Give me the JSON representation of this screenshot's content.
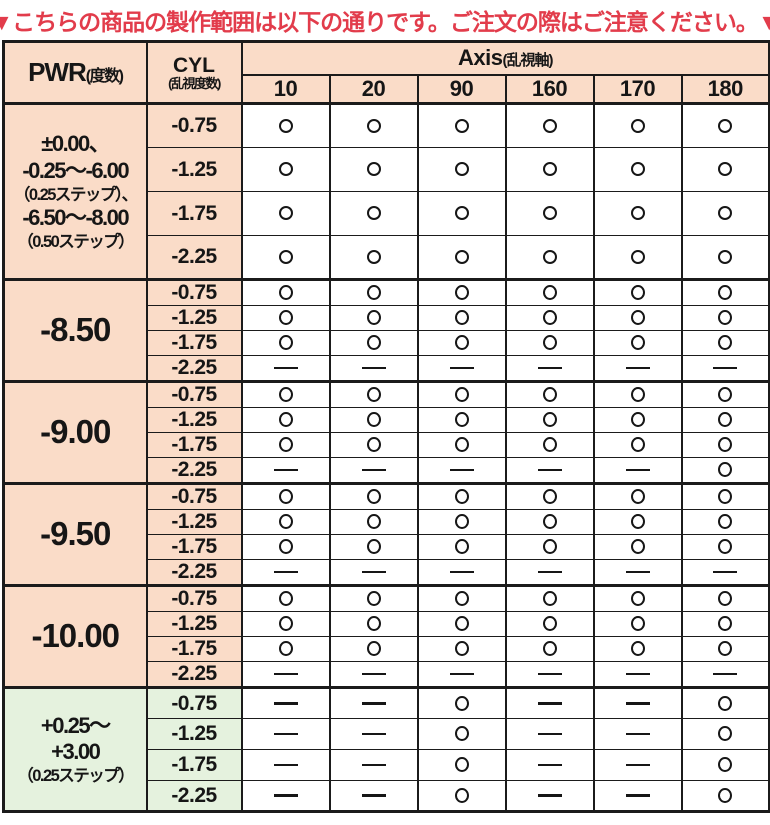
{
  "title": "▼こちらの商品の製作範囲は以下の通りです。ご注文の際はご注意ください。▼",
  "colors": {
    "title_red": "#e23c4b",
    "peach": "#fadcc8",
    "green": "#e5f2de",
    "border": "#1b1b1b"
  },
  "header": {
    "pwr_main": "PWR",
    "pwr_sub": "(度数)",
    "cyl_main": "CYL",
    "cyl_sub": "(乱視度数)",
    "axis_main": "Axis",
    "axis_sub": "(乱視軸)",
    "axis_values": [
      "10",
      "20",
      "90",
      "160",
      "170",
      "180"
    ]
  },
  "groups": [
    {
      "theme": "peach",
      "row_size": "tall",
      "pwr_lines": [
        {
          "text": "±0.00、",
          "small": false
        },
        {
          "text": "-0.25〜-6.00",
          "small": false
        },
        {
          "text": "（0.25ステップ）、",
          "small": true
        },
        {
          "text": "-6.50〜-8.00",
          "small": false
        },
        {
          "text": "（0.50ステップ）",
          "small": true
        }
      ],
      "rows": [
        {
          "cyl": "-0.75",
          "marks": [
            "○",
            "○",
            "○",
            "○",
            "○",
            "○"
          ]
        },
        {
          "cyl": "-1.25",
          "marks": [
            "○",
            "○",
            "○",
            "○",
            "○",
            "○"
          ]
        },
        {
          "cyl": "-1.75",
          "marks": [
            "○",
            "○",
            "○",
            "○",
            "○",
            "○"
          ]
        },
        {
          "cyl": "-2.25",
          "marks": [
            "○",
            "○",
            "○",
            "○",
            "○",
            "○"
          ]
        }
      ]
    },
    {
      "theme": "peach",
      "row_size": "compact",
      "pwr_lines": [
        {
          "text": "-8.50",
          "small": false
        }
      ],
      "rows": [
        {
          "cyl": "-0.75",
          "marks": [
            "○",
            "○",
            "○",
            "○",
            "○",
            "○"
          ]
        },
        {
          "cyl": "-1.25",
          "marks": [
            "○",
            "○",
            "○",
            "○",
            "○",
            "○"
          ]
        },
        {
          "cyl": "-1.75",
          "marks": [
            "○",
            "○",
            "○",
            "○",
            "○",
            "○"
          ]
        },
        {
          "cyl": "-2.25",
          "marks": [
            "—",
            "—",
            "—",
            "—",
            "—",
            "—"
          ]
        }
      ]
    },
    {
      "theme": "peach",
      "row_size": "compact",
      "pwr_lines": [
        {
          "text": "-9.00",
          "small": false
        }
      ],
      "rows": [
        {
          "cyl": "-0.75",
          "marks": [
            "○",
            "○",
            "○",
            "○",
            "○",
            "○"
          ]
        },
        {
          "cyl": "-1.25",
          "marks": [
            "○",
            "○",
            "○",
            "○",
            "○",
            "○"
          ]
        },
        {
          "cyl": "-1.75",
          "marks": [
            "○",
            "○",
            "○",
            "○",
            "○",
            "○"
          ]
        },
        {
          "cyl": "-2.25",
          "marks": [
            "—",
            "—",
            "—",
            "—",
            "—",
            "○"
          ]
        }
      ]
    },
    {
      "theme": "peach",
      "row_size": "compact",
      "pwr_lines": [
        {
          "text": "-9.50",
          "small": false
        }
      ],
      "rows": [
        {
          "cyl": "-0.75",
          "marks": [
            "○",
            "○",
            "○",
            "○",
            "○",
            "○"
          ]
        },
        {
          "cyl": "-1.25",
          "marks": [
            "○",
            "○",
            "○",
            "○",
            "○",
            "○"
          ]
        },
        {
          "cyl": "-1.75",
          "marks": [
            "○",
            "○",
            "○",
            "○",
            "○",
            "○"
          ]
        },
        {
          "cyl": "-2.25",
          "marks": [
            "—",
            "—",
            "—",
            "—",
            "—",
            "—"
          ]
        }
      ]
    },
    {
      "theme": "peach",
      "row_size": "compact",
      "pwr_lines": [
        {
          "text": "-10.00",
          "small": false
        }
      ],
      "rows": [
        {
          "cyl": "-0.75",
          "marks": [
            "○",
            "○",
            "○",
            "○",
            "○",
            "○"
          ]
        },
        {
          "cyl": "-1.25",
          "marks": [
            "○",
            "○",
            "○",
            "○",
            "○",
            "○"
          ]
        },
        {
          "cyl": "-1.75",
          "marks": [
            "○",
            "○",
            "○",
            "○",
            "○",
            "○"
          ]
        },
        {
          "cyl": "-2.25",
          "marks": [
            "—",
            "—",
            "—",
            "—",
            "—",
            "—"
          ]
        }
      ]
    },
    {
      "theme": "green",
      "row_size": "medium",
      "pwr_lines": [
        {
          "text": "+0.25〜",
          "small": false
        },
        {
          "text": "+3.00",
          "small": false
        },
        {
          "text": "（0.25ステップ）",
          "small": true
        }
      ],
      "rows": [
        {
          "cyl": "-0.75",
          "marks": [
            "—",
            "—",
            "○",
            "—",
            "—",
            "○"
          ]
        },
        {
          "cyl": "-1.25",
          "marks": [
            "—",
            "—",
            "○",
            "—",
            "—",
            "○"
          ]
        },
        {
          "cyl": "-1.75",
          "marks": [
            "—",
            "—",
            "○",
            "—",
            "—",
            "○"
          ]
        },
        {
          "cyl": "-2.25",
          "marks": [
            "—",
            "—",
            "○",
            "—",
            "—",
            "○"
          ]
        }
      ]
    }
  ]
}
